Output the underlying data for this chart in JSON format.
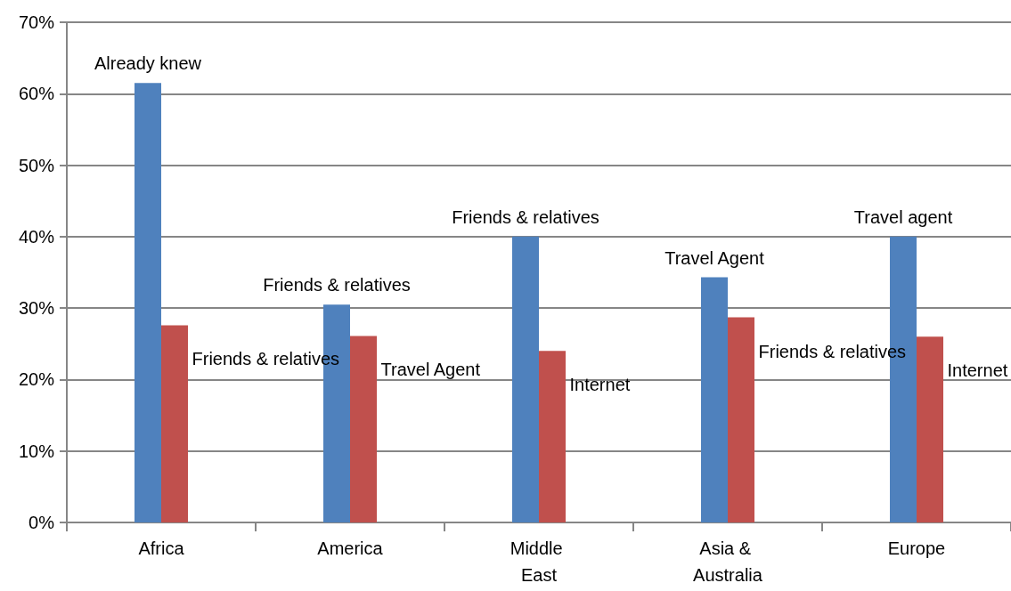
{
  "chart_data": {
    "type": "bar",
    "categories": [
      "Africa",
      "America",
      "Middle East",
      "Asia & Australia",
      "Europe"
    ],
    "series": [
      {
        "color": "#4f81bd",
        "values": [
          61.5,
          30.5,
          40.0,
          34.3,
          40.0
        ]
      },
      {
        "color": "#c0504d",
        "values": [
          27.6,
          26.1,
          24.0,
          28.7,
          26.0
        ]
      }
    ],
    "ylim": [
      0,
      70
    ],
    "yticks": [
      {
        "value": 0,
        "label": "0%"
      },
      {
        "value": 10,
        "label": "10%"
      },
      {
        "value": 20,
        "label": "20%"
      },
      {
        "value": 30,
        "label": "30%"
      },
      {
        "value": 40,
        "label": "40%"
      },
      {
        "value": 50,
        "label": "50%"
      },
      {
        "value": 60,
        "label": "60%"
      },
      {
        "value": 70,
        "label": "70%"
      }
    ],
    "grid": "y",
    "annotations": [
      {
        "text": "Already knew",
        "x": "Africa",
        "y": 61.5
      },
      {
        "text": "Friends & relatives",
        "x": "Africa",
        "y": 27.6
      },
      {
        "text": "Friends & relatives",
        "x": "America",
        "y": 30.5
      },
      {
        "text": "Travel Agent",
        "x": "America",
        "y": 26.1
      },
      {
        "text": "Friends & relatives",
        "x": "Middle East",
        "y": 40.0
      },
      {
        "text": "Internet",
        "x": "Middle East",
        "y": 24.0
      },
      {
        "text": "Travel Agent",
        "x": "Asia & Australia",
        "y": 34.3
      },
      {
        "text": "Friends & relatives",
        "x": "Asia & Australia",
        "y": 28.7
      },
      {
        "text": "Travel agent",
        "x": "Europe",
        "y": 40.0
      },
      {
        "text": "Internet",
        "x": "Europe",
        "y": 26.0
      }
    ]
  }
}
